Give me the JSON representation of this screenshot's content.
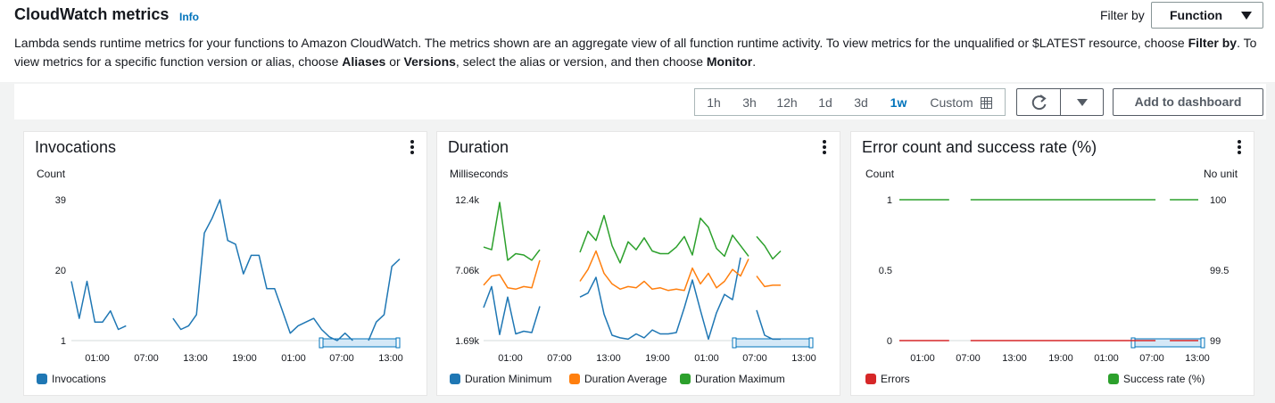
{
  "header": {
    "title": "CloudWatch metrics",
    "info": "Info",
    "filter_label": "Filter by",
    "filter_value": "Function",
    "desc_1": "Lambda sends runtime metrics for your functions to Amazon CloudWatch. The metrics shown are an aggregate view of all function runtime activity. To view metrics for the unqualified or $LATEST resource, choose ",
    "desc_b1": "Filter by",
    "desc_2": ". To view metrics for a specific function version or alias, choose ",
    "desc_b2": "Aliases",
    "desc_3": " or ",
    "desc_b3": "Versions",
    "desc_4": ", select the alias or version, and then choose ",
    "desc_b4": "Monitor",
    "desc_5": "."
  },
  "toolbar": {
    "ranges": [
      "1h",
      "3h",
      "12h",
      "1d",
      "3d",
      "1w"
    ],
    "active_range": "1w",
    "custom_label": "Custom",
    "add_label": "Add to dashboard",
    "icons": [
      "calendar-icon",
      "refresh-icon",
      "caret-down-icon"
    ]
  },
  "colors": {
    "blue": "#1f77b4",
    "orange": "#ff7f0e",
    "green": "#2ca02c",
    "red": "#d62728"
  },
  "chart_data": [
    {
      "type": "line",
      "title": "Invocations",
      "ylabel": "Count",
      "yticks": [
        "39",
        "20",
        "1"
      ],
      "ylim": [
        1,
        39
      ],
      "xticks": [
        "01:00",
        "07:00",
        "13:00",
        "19:00",
        "01:00",
        "07:00",
        "13:00"
      ],
      "series": [
        {
          "name": "Invocations",
          "color": "#1f77b4",
          "segments": [
            [
              [
                0,
                17
              ],
              [
                1,
                7
              ],
              [
                2,
                17
              ],
              [
                3,
                6
              ],
              [
                4,
                6
              ],
              [
                5,
                9
              ],
              [
                6,
                4
              ],
              [
                7,
                5
              ]
            ],
            [
              [
                13,
                7
              ],
              [
                14,
                4
              ],
              [
                15,
                5
              ],
              [
                16,
                8
              ],
              [
                17,
                30
              ],
              [
                18,
                34
              ],
              [
                19,
                39
              ],
              [
                20,
                28
              ],
              [
                21,
                27
              ],
              [
                22,
                19
              ],
              [
                23,
                24
              ],
              [
                24,
                24
              ],
              [
                25,
                15
              ],
              [
                26,
                15
              ],
              [
                27,
                9
              ],
              [
                28,
                3
              ],
              [
                29,
                5
              ],
              [
                30,
                6
              ],
              [
                31,
                7
              ],
              [
                32,
                4
              ],
              [
                33,
                2
              ],
              [
                34,
                1
              ],
              [
                35,
                3
              ],
              [
                36,
                1
              ]
            ],
            [
              [
                38,
                1
              ],
              [
                39,
                6
              ],
              [
                40,
                8
              ],
              [
                41,
                21
              ],
              [
                42,
                23
              ]
            ]
          ]
        }
      ]
    },
    {
      "type": "line",
      "title": "Duration",
      "ylabel": "Milliseconds",
      "yticks": [
        "12.4k",
        "7.06k",
        "1.69k"
      ],
      "ylim": [
        1690,
        12400
      ],
      "xticks": [
        "01:00",
        "07:00",
        "13:00",
        "19:00",
        "01:00",
        "07:00",
        "13:00"
      ],
      "series": [
        {
          "name": "Duration Minimum",
          "color": "#1f77b4",
          "segments": [
            [
              [
                0,
                4200
              ],
              [
                1,
                5800
              ],
              [
                2,
                2150
              ],
              [
                3,
                5000
              ],
              [
                4,
                2200
              ],
              [
                5,
                2400
              ],
              [
                6,
                2300
              ],
              [
                7,
                4300
              ]
            ],
            [
              [
                12,
                5000
              ],
              [
                13,
                5300
              ],
              [
                14,
                6500
              ],
              [
                15,
                3700
              ],
              [
                16,
                2100
              ],
              [
                17,
                1900
              ],
              [
                18,
                1800
              ],
              [
                19,
                2200
              ],
              [
                20,
                1900
              ],
              [
                21,
                2500
              ],
              [
                22,
                2200
              ],
              [
                23,
                2200
              ],
              [
                24,
                2300
              ],
              [
                25,
                4200
              ],
              [
                26,
                6300
              ],
              [
                27,
                4000
              ],
              [
                28,
                1800
              ],
              [
                29,
                3800
              ],
              [
                30,
                5200
              ],
              [
                31,
                4800
              ],
              [
                32,
                8000
              ]
            ],
            [
              [
                34,
                4000
              ],
              [
                35,
                2100
              ],
              [
                36,
                1800
              ],
              [
                37,
                1800
              ]
            ]
          ]
        },
        {
          "name": "Duration Average",
          "color": "#ff7f0e",
          "segments": [
            [
              [
                0,
                5900
              ],
              [
                1,
                6600
              ],
              [
                2,
                6700
              ],
              [
                3,
                5700
              ],
              [
                4,
                5600
              ],
              [
                5,
                5800
              ],
              [
                6,
                5700
              ],
              [
                7,
                7800
              ]
            ],
            [
              [
                12,
                6200
              ],
              [
                13,
                7100
              ],
              [
                14,
                8500
              ],
              [
                15,
                6800
              ],
              [
                16,
                6000
              ],
              [
                17,
                5600
              ],
              [
                18,
                5800
              ],
              [
                19,
                5700
              ],
              [
                20,
                6200
              ],
              [
                21,
                5600
              ],
              [
                22,
                5700
              ],
              [
                23,
                5500
              ],
              [
                24,
                5600
              ],
              [
                25,
                5500
              ],
              [
                26,
                7200
              ],
              [
                27,
                6000
              ],
              [
                28,
                6800
              ],
              [
                29,
                5700
              ],
              [
                30,
                6200
              ],
              [
                31,
                7100
              ],
              [
                32,
                6600
              ],
              [
                33,
                7900
              ]
            ],
            [
              [
                34,
                6600
              ],
              [
                35,
                5800
              ],
              [
                36,
                5900
              ],
              [
                37,
                5900
              ]
            ]
          ]
        },
        {
          "name": "Duration Maximum",
          "color": "#2ca02c",
          "segments": [
            [
              [
                0,
                8800
              ],
              [
                1,
                8600
              ],
              [
                2,
                12200
              ],
              [
                3,
                7800
              ],
              [
                4,
                8300
              ],
              [
                5,
                8200
              ],
              [
                6,
                7800
              ],
              [
                7,
                8600
              ]
            ],
            [
              [
                12,
                8400
              ],
              [
                13,
                10000
              ],
              [
                14,
                9300
              ],
              [
                15,
                11200
              ],
              [
                16,
                8900
              ],
              [
                17,
                7600
              ],
              [
                18,
                9200
              ],
              [
                19,
                8600
              ],
              [
                20,
                9500
              ],
              [
                21,
                8500
              ],
              [
                22,
                8300
              ],
              [
                23,
                8300
              ],
              [
                24,
                8800
              ],
              [
                25,
                9600
              ],
              [
                26,
                8200
              ],
              [
                27,
                11000
              ],
              [
                28,
                10300
              ],
              [
                29,
                8700
              ],
              [
                30,
                8100
              ],
              [
                31,
                9700
              ],
              [
                32,
                8900
              ],
              [
                33,
                8100
              ]
            ],
            [
              [
                34,
                9600
              ],
              [
                35,
                8900
              ],
              [
                36,
                7900
              ],
              [
                37,
                8500
              ]
            ]
          ]
        }
      ]
    },
    {
      "type": "line",
      "title": "Error count and success rate (%)",
      "ylabel": "Count",
      "ylabel_right": "No unit",
      "yticks": [
        "1",
        "0.5",
        "0"
      ],
      "yticks_right": [
        "100",
        "99.5",
        "99"
      ],
      "ylim": [
        0,
        1
      ],
      "ylim_right": [
        99,
        100
      ],
      "xticks": [
        "01:00",
        "07:00",
        "13:00",
        "19:00",
        "01:00",
        "07:00",
        "13:00"
      ],
      "series": [
        {
          "name": "Errors",
          "color": "#d62728",
          "axis": "left",
          "segments": [
            [
              [
                0,
                0
              ],
              [
                7,
                0
              ]
            ],
            [
              [
                10,
                0
              ],
              [
                36,
                0
              ]
            ],
            [
              [
                38,
                0
              ],
              [
                42,
                0
              ]
            ]
          ]
        },
        {
          "name": "Success rate (%)",
          "color": "#2ca02c",
          "axis": "right",
          "segments": [
            [
              [
                0,
                100
              ],
              [
                7,
                100
              ]
            ],
            [
              [
                10,
                100
              ],
              [
                36,
                100
              ]
            ],
            [
              [
                38,
                100
              ],
              [
                42,
                100
              ]
            ]
          ]
        }
      ]
    }
  ]
}
